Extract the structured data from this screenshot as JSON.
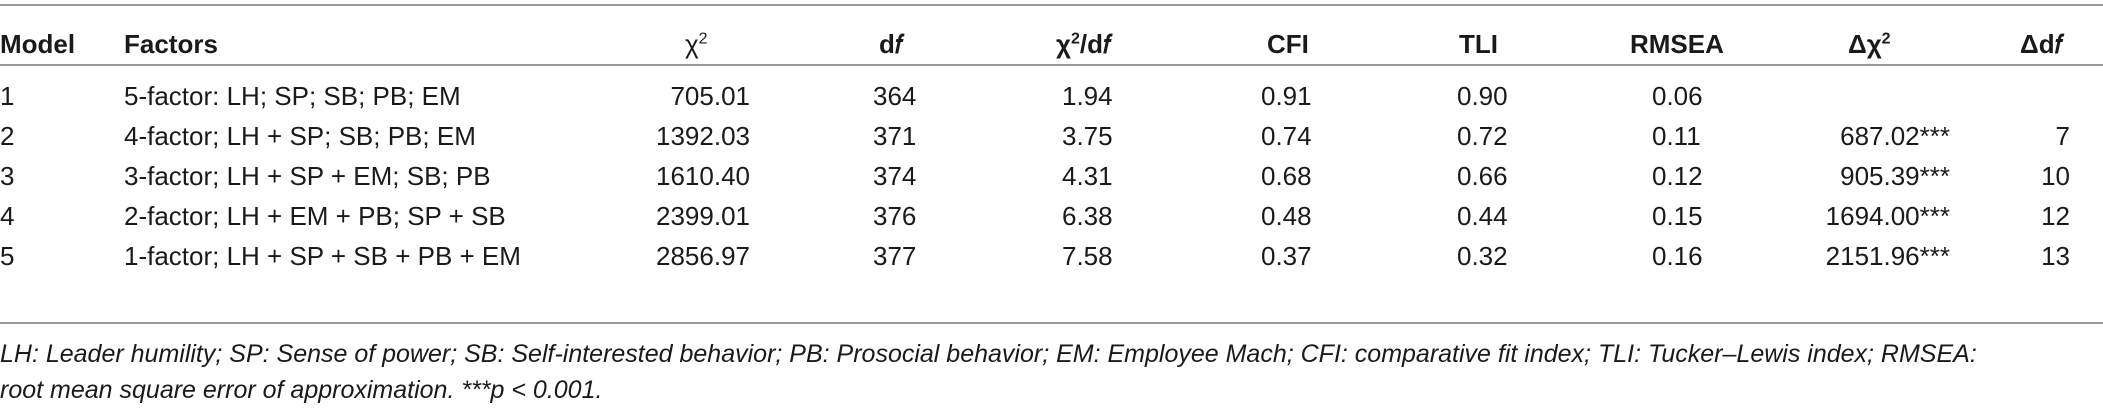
{
  "table": {
    "headers": {
      "model": "Model",
      "factors": "Factors",
      "chi2_base": "χ",
      "chi2_sup": "2",
      "df": "d𝑓",
      "chi2df_base": "χ",
      "chi2df_sup": "2",
      "chi2df_tail": "/d𝑓",
      "cfi": "CFI",
      "tli": "TLI",
      "rmsea": "RMSEA",
      "dchi2_base": "Δχ",
      "dchi2_sup": "2",
      "ddf": "Δd𝑓"
    },
    "rows": [
      {
        "model": "1",
        "factors": "5-factor: LH; SP; SB; PB; EM",
        "chi2": "705.01",
        "df": "364",
        "chi2df": "1.94",
        "cfi": "0.91",
        "tli": "0.90",
        "rmsea": "0.06",
        "dchi2": "",
        "ddf": ""
      },
      {
        "model": "2",
        "factors": "4-factor; LH + SP; SB; PB; EM",
        "chi2": "1392.03",
        "df": "371",
        "chi2df": "3.75",
        "cfi": "0.74",
        "tli": "0.72",
        "rmsea": "0.11",
        "dchi2": "687.02***",
        "ddf": "7"
      },
      {
        "model": "3",
        "factors": "3-factor; LH + SP + EM; SB; PB",
        "chi2": "1610.40",
        "df": "374",
        "chi2df": "4.31",
        "cfi": "0.68",
        "tli": "0.66",
        "rmsea": "0.12",
        "dchi2": "905.39***",
        "ddf": "10"
      },
      {
        "model": "4",
        "factors": "2-factor; LH + EM + PB; SP + SB",
        "chi2": "2399.01",
        "df": "376",
        "chi2df": "6.38",
        "cfi": "0.48",
        "tli": "0.44",
        "rmsea": "0.15",
        "dchi2": "1694.00***",
        "ddf": "12"
      },
      {
        "model": "5",
        "factors": "1-factor; LH + SP + SB + PB + EM",
        "chi2": "2856.97",
        "df": "377",
        "chi2df": "7.58",
        "cfi": "0.37",
        "tli": "0.32",
        "rmsea": "0.16",
        "dchi2": "2151.96***",
        "ddf": "13"
      }
    ]
  },
  "note": {
    "line1": "LH: Leader humility; SP: Sense of power; SB: Self-interested behavior; PB: Prosocial behavior; EM: Employee Mach; CFI: comparative fit index; TLI: Tucker–Lewis index; RMSEA:",
    "line2": "root mean square error of approximation. ***p < 0.001."
  }
}
